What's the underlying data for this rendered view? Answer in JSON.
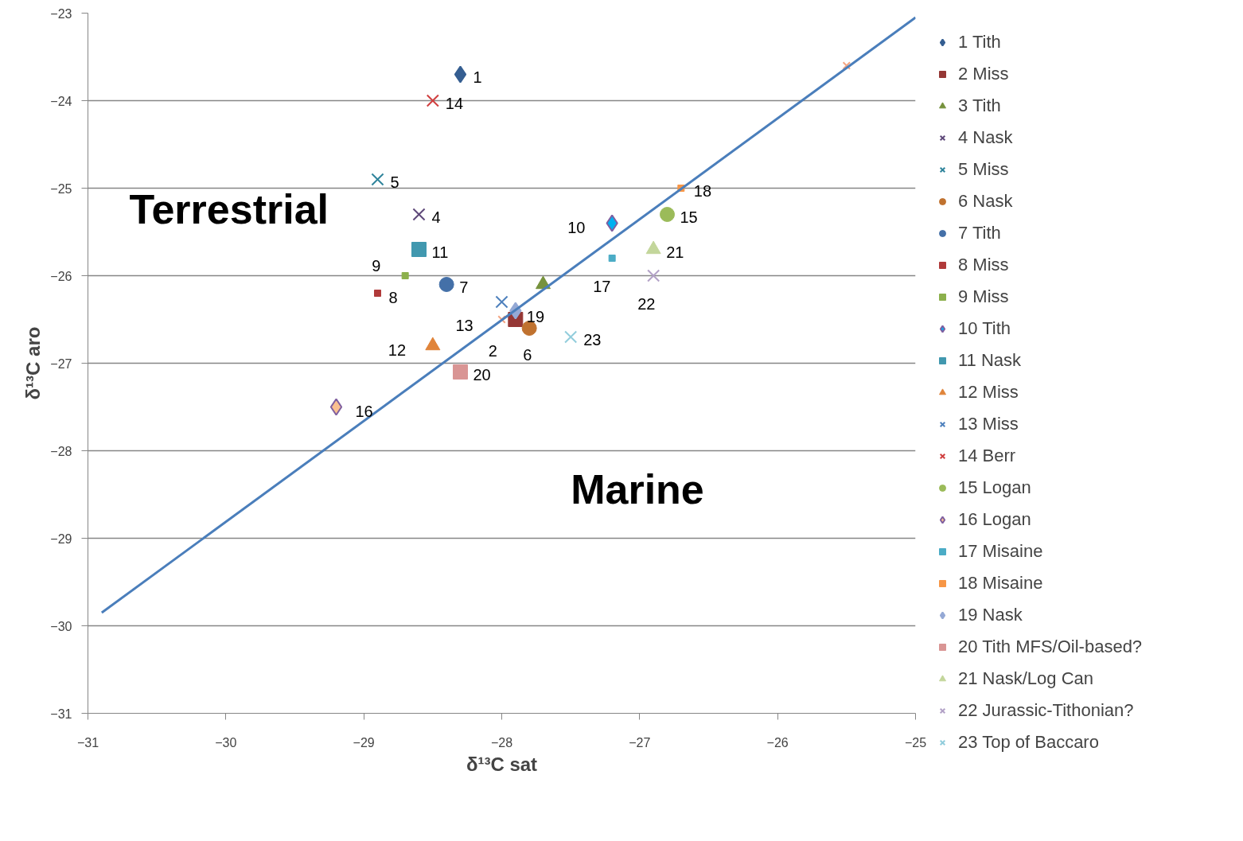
{
  "chart_data": {
    "type": "scatter",
    "xlabel": "δ¹³C sat",
    "ylabel": "δ¹³C aro",
    "xlim": [
      -31,
      -25
    ],
    "ylim": [
      -31,
      -23
    ],
    "xticks": [
      -31,
      -30,
      -29,
      -28,
      -27,
      -26,
      -25
    ],
    "yticks": [
      -31,
      -30,
      -29,
      -28,
      -27,
      -26,
      -25,
      -24,
      -23
    ],
    "grid": "y",
    "legend": "right",
    "series": [
      {
        "name": "1 Tith",
        "color": "#355e91",
        "marker": "diamond",
        "x": [
          -28.3
        ],
        "values": [
          -23.7
        ]
      },
      {
        "name": "2 Miss",
        "color": "#953735",
        "marker": "square",
        "x": [
          -27.9
        ],
        "values": [
          -26.5
        ]
      },
      {
        "name": "3 Tith",
        "color": "#76923c",
        "marker": "triangle",
        "x": [
          -27.7
        ],
        "values": [
          -26.1
        ]
      },
      {
        "name": "4 Nask",
        "color": "#5f497a",
        "marker": "cross",
        "x": [
          -28.6
        ],
        "values": [
          -25.3
        ]
      },
      {
        "name": "5 Miss",
        "color": "#31859c",
        "marker": "cross",
        "x": [
          -28.9
        ],
        "values": [
          -24.9
        ]
      },
      {
        "name": "6 Nask",
        "color": "#c0722f",
        "marker": "circle",
        "x": [
          -27.8
        ],
        "values": [
          -26.6
        ]
      },
      {
        "name": "7 Tith",
        "color": "#4470a8",
        "marker": "circle",
        "x": [
          -28.4
        ],
        "values": [
          -26.1
        ]
      },
      {
        "name": "8 Miss",
        "color": "#b03a3a",
        "marker": "square",
        "x": [
          -28.9
        ],
        "values": [
          -26.2
        ]
      },
      {
        "name": "9 Miss",
        "color": "#8cb04c",
        "marker": "square",
        "x": [
          -28.7
        ],
        "values": [
          -26.0
        ]
      },
      {
        "name": "10 Tith",
        "color": "#00b0f0",
        "marker": "diamond",
        "x": [
          -27.2
        ],
        "values": [
          -25.4
        ]
      },
      {
        "name": "11 Nask",
        "color": "#4198af",
        "marker": "square",
        "x": [
          -28.6
        ],
        "values": [
          -25.7
        ]
      },
      {
        "name": "12 Miss",
        "color": "#e0843a",
        "marker": "triangle",
        "x": [
          -28.5
        ],
        "values": [
          -26.8
        ]
      },
      {
        "name": "13 Miss",
        "color": "#4f81bd",
        "marker": "cross",
        "x": [
          -28.0
        ],
        "values": [
          -26.3
        ]
      },
      {
        "name": "14 Berr",
        "color": "#d04040",
        "marker": "cross",
        "x": [
          -28.5
        ],
        "values": [
          -24.0
        ]
      },
      {
        "name": "15 Logan",
        "color": "#9bbb59",
        "marker": "circle",
        "x": [
          -26.8
        ],
        "values": [
          -25.3
        ]
      },
      {
        "name": "16 Logan",
        "color": "#fac090",
        "marker": "diamond",
        "x": [
          -29.2
        ],
        "values": [
          -27.5
        ]
      },
      {
        "name": "17 Misaine",
        "color": "#4bacc6",
        "marker": "square",
        "x": [
          -27.2
        ],
        "values": [
          -25.8
        ]
      },
      {
        "name": "18 Misaine",
        "color": "#f79646",
        "marker": "square",
        "x": [
          -26.7
        ],
        "values": [
          -25.0
        ]
      },
      {
        "name": "19 Nask",
        "color": "#95a9d5",
        "marker": "diamond",
        "x": [
          -27.9
        ],
        "values": [
          -26.4
        ]
      },
      {
        "name": "20 Tith MFS/Oil-based?",
        "color": "#d99594",
        "marker": "square",
        "x": [
          -28.3
        ],
        "values": [
          -27.1
        ]
      },
      {
        "name": "21 Nask/Log Can",
        "color": "#c3d69b",
        "marker": "triangle",
        "x": [
          -26.9
        ],
        "values": [
          -25.7
        ]
      },
      {
        "name": "22 Jurassic-Tithonian?",
        "color": "#b3a2c7",
        "marker": "cross",
        "x": [
          -26.9
        ],
        "values": [
          -26.0
        ]
      },
      {
        "name": "23 Top of Baccaro",
        "color": "#92cddc",
        "marker": "cross",
        "x": [
          -27.5
        ],
        "values": [
          -26.7
        ]
      },
      {
        "color": "#f4a582",
        "marker": "cross",
        "x": [
          -28.0,
          -25.5
        ],
        "values": [
          -26.5,
          -23.6
        ]
      },
      {
        "type": "line",
        "color": "#4a7ebb",
        "x": [
          -30.9,
          -25.0
        ],
        "values": [
          -29.85,
          -23.05
        ]
      }
    ],
    "annotations": [
      {
        "text": "1",
        "x": -28.3,
        "y": -23.7
      },
      {
        "text": "2",
        "x": -27.9,
        "y": -26.5
      },
      {
        "text": "4",
        "x": -28.6,
        "y": -25.3
      },
      {
        "text": "5",
        "x": -28.9,
        "y": -24.9
      },
      {
        "text": "6",
        "x": -27.8,
        "y": -26.6
      },
      {
        "text": "7",
        "x": -28.4,
        "y": -26.1
      },
      {
        "text": "8",
        "x": -28.9,
        "y": -26.2
      },
      {
        "text": "9",
        "x": -28.7,
        "y": -26.0
      },
      {
        "text": "10",
        "x": -27.2,
        "y": -25.4
      },
      {
        "text": "11",
        "x": -28.6,
        "y": -25.7
      },
      {
        "text": "12",
        "x": -28.5,
        "y": -26.8
      },
      {
        "text": "13",
        "x": -28.0,
        "y": -26.3
      },
      {
        "text": "14",
        "x": -28.5,
        "y": -24.0
      },
      {
        "text": "15",
        "x": -26.8,
        "y": -25.3
      },
      {
        "text": "16",
        "x": -29.2,
        "y": -27.5
      },
      {
        "text": "17",
        "x": -27.2,
        "y": -25.8
      },
      {
        "text": "18",
        "x": -26.7,
        "y": -25.0
      },
      {
        "text": "19",
        "x": -27.9,
        "y": -26.4
      },
      {
        "text": "20",
        "x": -28.3,
        "y": -27.1
      },
      {
        "text": "21",
        "x": -26.9,
        "y": -25.7
      },
      {
        "text": "22",
        "x": -26.9,
        "y": -26.0
      },
      {
        "text": "23",
        "x": -27.5,
        "y": -26.7
      },
      "Terrestrial",
      "Marine"
    ]
  }
}
